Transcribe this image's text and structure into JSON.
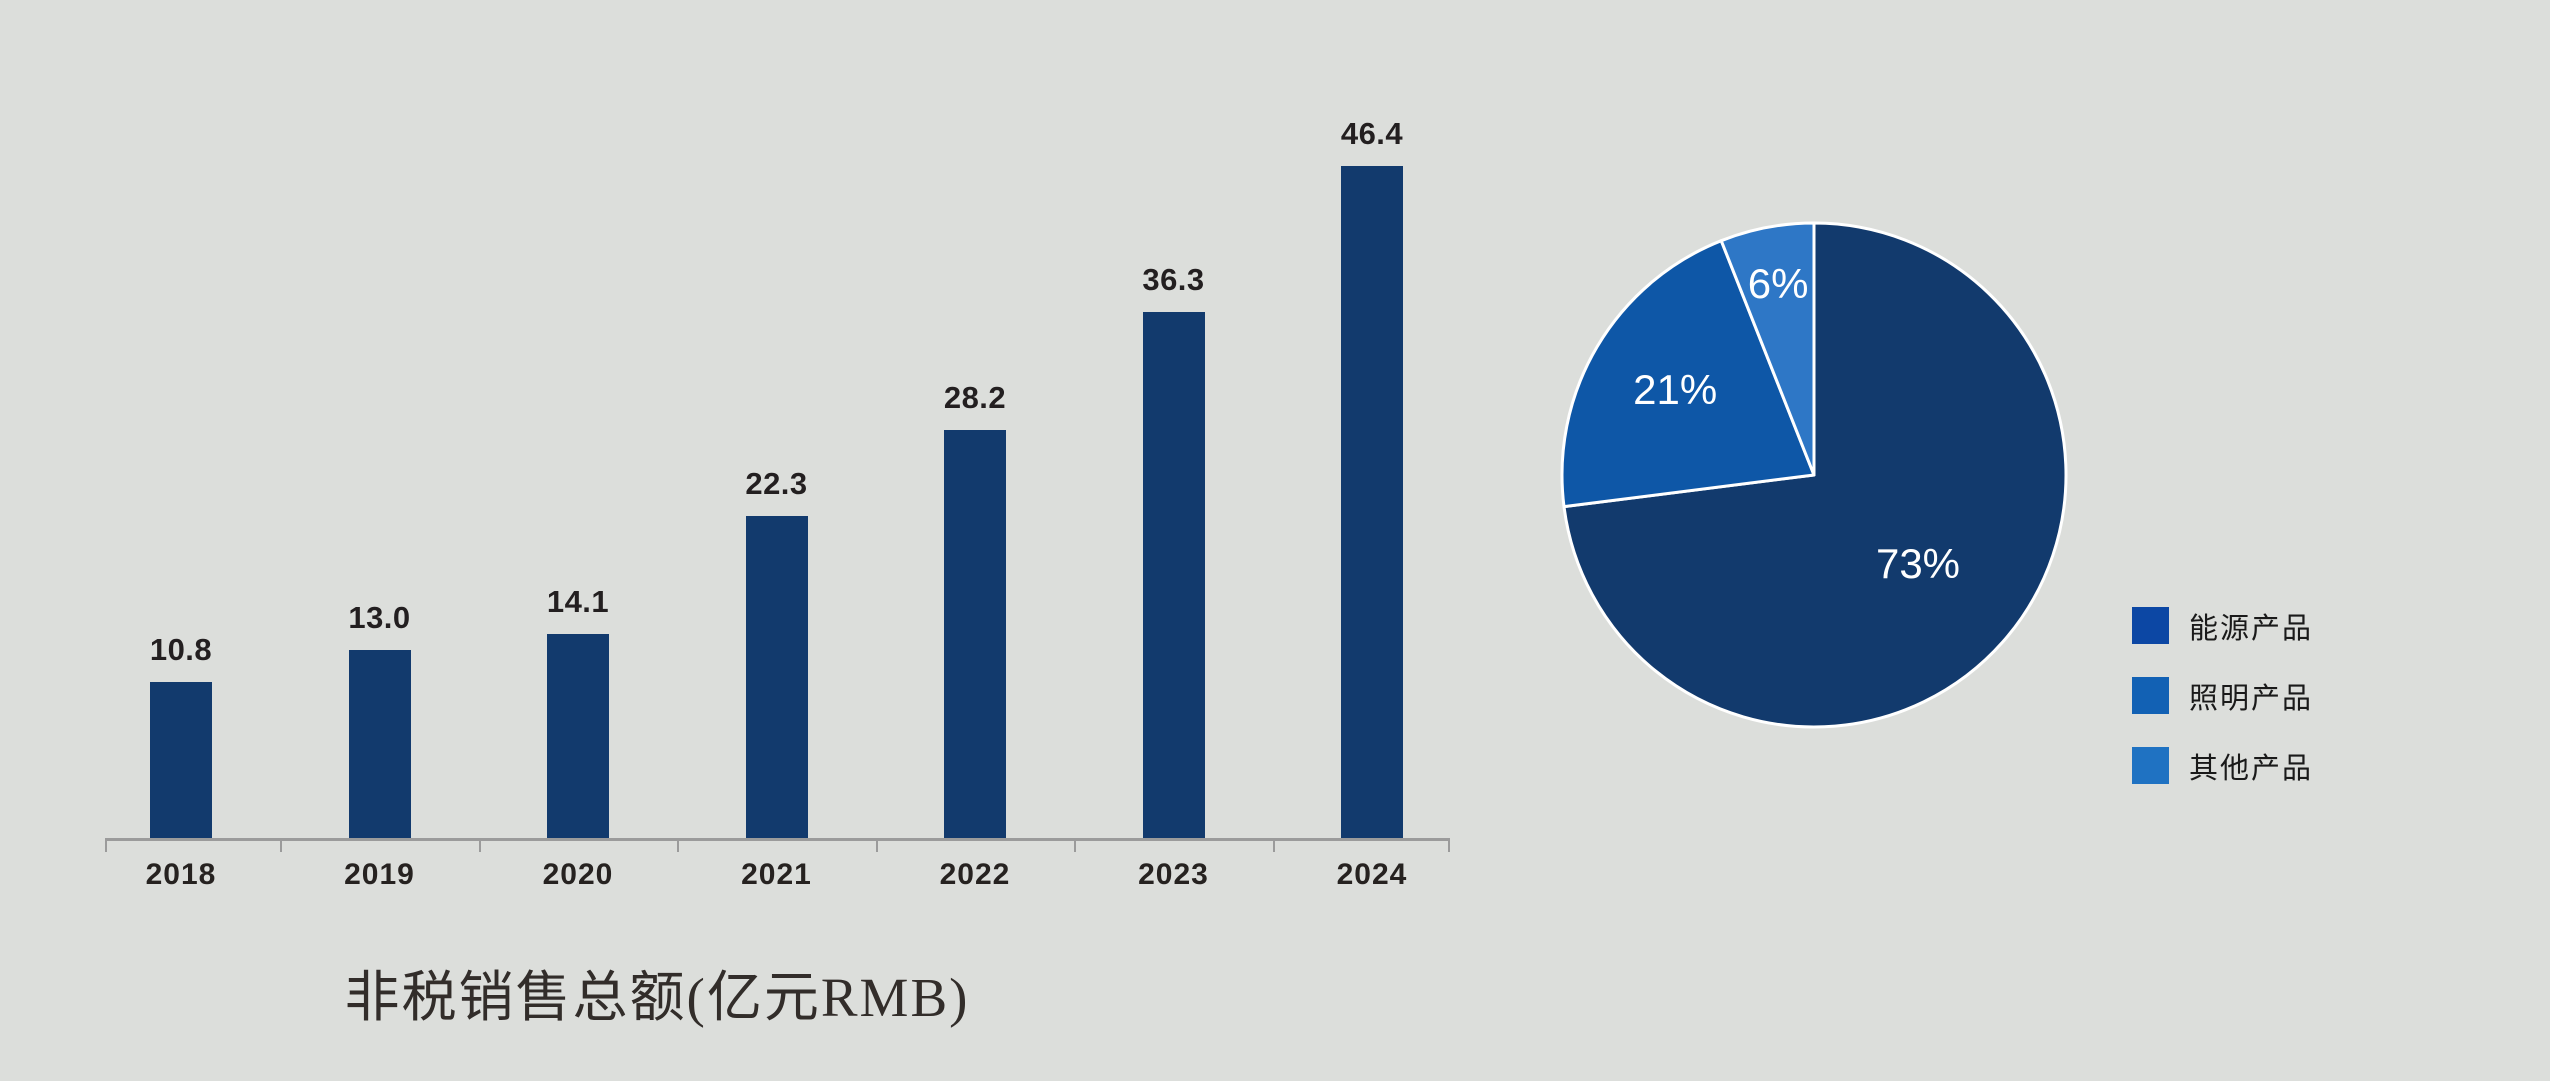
{
  "background_color": "#dcdedb",
  "chart_data": [
    {
      "type": "bar",
      "title": "非税销售总额(亿元RMB)",
      "categories": [
        "2018",
        "2019",
        "2020",
        "2021",
        "2022",
        "2023",
        "2024"
      ],
      "values": [
        10.8,
        13.0,
        14.1,
        22.3,
        28.2,
        36.3,
        46.4
      ],
      "value_labels": [
        "10.8",
        "13.0",
        "14.1",
        "22.3",
        "28.2",
        "36.3",
        "46.4"
      ],
      "ylim": [
        0,
        46.4
      ],
      "grid": false,
      "bar_color": "#123a6d",
      "axis_color": "#9b9b9b",
      "text_color": "#231f20",
      "value_label_position": "above-bars",
      "xlabel": "",
      "ylabel": ""
    },
    {
      "type": "pie",
      "start_angle_deg": 0,
      "direction": "clockwise",
      "slice_border_color": "#ffffff",
      "label_color": "#ffffff",
      "slices": [
        {
          "key": "energy-products",
          "label": "能源产品",
          "value": 73,
          "display": "73%",
          "color": "#123a6d",
          "label_radius_factor": 0.55
        },
        {
          "key": "lighting-products",
          "label": "照明产品",
          "value": 21,
          "display": "21%",
          "color": "#0e57a7",
          "label_radius_factor": 0.64
        },
        {
          "key": "other-products",
          "label": "其他产品",
          "value": 6,
          "display": "6%",
          "color": "#2e77c6",
          "label_radius_factor": 0.76
        }
      ],
      "legend": {
        "position": "right-of-pie-lower",
        "items": [
          {
            "key": "energy-products",
            "label": "能源产品",
            "swatch_color": "#0c47a4"
          },
          {
            "key": "lighting-products",
            "label": "照明产品",
            "swatch_color": "#1261b4"
          },
          {
            "key": "other-products",
            "label": "其他产品",
            "swatch_color": "#1f72c2"
          }
        ]
      }
    }
  ]
}
